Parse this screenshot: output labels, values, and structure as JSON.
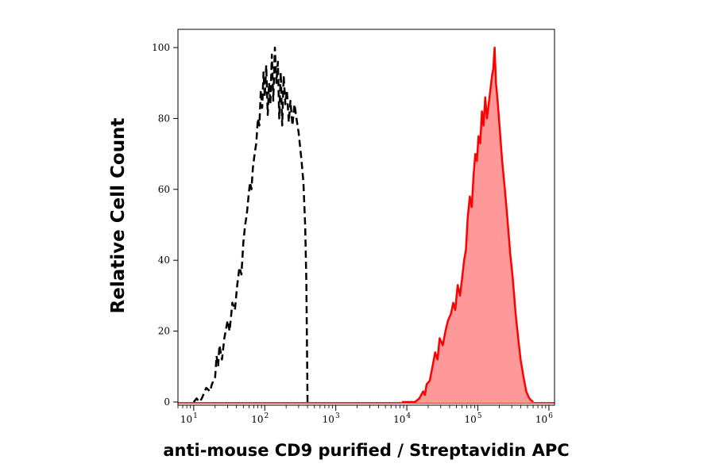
{
  "chart_data": {
    "type": "area",
    "xlabel": "anti-mouse CD9 purified / Streptavidin APC",
    "ylabel": "Relative Cell Count",
    "x_scale": "log",
    "xlim": [
      6,
      1200000
    ],
    "ylim": [
      0,
      100
    ],
    "x_ticks": [
      {
        "base": "10",
        "exp": "1",
        "value": 10
      },
      {
        "base": "10",
        "exp": "2",
        "value": 100
      },
      {
        "base": "10",
        "exp": "3",
        "value": 1000
      },
      {
        "base": "10",
        "exp": "4",
        "value": 10000
      },
      {
        "base": "10",
        "exp": "5",
        "value": 100000
      },
      {
        "base": "10",
        "exp": "6",
        "value": 1000000
      }
    ],
    "y_ticks": [
      {
        "label": "0",
        "value": 0
      },
      {
        "label": "20",
        "value": 20
      },
      {
        "label": "40",
        "value": 40
      },
      {
        "label": "60",
        "value": 60
      },
      {
        "label": "80",
        "value": 80
      },
      {
        "label": "100",
        "value": 100
      }
    ],
    "grid": false,
    "series": [
      {
        "style": "dashed",
        "color": "#000000",
        "points": [
          [
            10,
            0
          ],
          [
            11,
            1
          ],
          [
            12,
            0
          ],
          [
            13,
            1
          ],
          [
            15,
            4
          ],
          [
            17,
            3
          ],
          [
            18,
            5
          ],
          [
            20,
            7
          ],
          [
            21,
            13
          ],
          [
            22,
            10
          ],
          [
            23,
            16
          ],
          [
            25,
            12
          ],
          [
            27,
            18
          ],
          [
            30,
            23
          ],
          [
            32,
            20
          ],
          [
            35,
            28
          ],
          [
            38,
            26
          ],
          [
            41,
            33
          ],
          [
            44,
            38
          ],
          [
            47,
            36
          ],
          [
            50,
            45
          ],
          [
            53,
            50
          ],
          [
            56,
            53
          ],
          [
            59,
            58
          ],
          [
            62,
            62
          ],
          [
            65,
            60
          ],
          [
            68,
            66
          ],
          [
            72,
            70
          ],
          [
            76,
            73
          ],
          [
            80,
            80
          ],
          [
            84,
            78
          ],
          [
            88,
            88
          ],
          [
            92,
            83
          ],
          [
            96,
            93
          ],
          [
            100,
            86
          ],
          [
            105,
            95
          ],
          [
            110,
            81
          ],
          [
            115,
            90
          ],
          [
            120,
            84
          ],
          [
            126,
            98
          ],
          [
            132,
            85
          ],
          [
            139,
            100
          ],
          [
            146,
            90
          ],
          [
            153,
            96
          ],
          [
            160,
            80
          ],
          [
            168,
            93
          ],
          [
            176,
            78
          ],
          [
            185,
            92
          ],
          [
            195,
            84
          ],
          [
            205,
            88
          ],
          [
            218,
            79
          ],
          [
            230,
            85
          ],
          [
            245,
            78
          ],
          [
            262,
            84
          ],
          [
            280,
            80
          ],
          [
            300,
            76
          ],
          [
            330,
            68
          ],
          [
            350,
            62
          ],
          [
            370,
            50
          ],
          [
            385,
            34
          ],
          [
            395,
            12
          ],
          [
            400,
            0
          ]
        ]
      },
      {
        "style": "filled",
        "color": "#ff0000",
        "fill": "#ff9999",
        "points": [
          [
            8500,
            0
          ],
          [
            13000,
            0
          ],
          [
            15000,
            1
          ],
          [
            17000,
            3
          ],
          [
            18000,
            2
          ],
          [
            19000,
            5
          ],
          [
            21000,
            6
          ],
          [
            23000,
            10
          ],
          [
            25000,
            14
          ],
          [
            27000,
            12
          ],
          [
            29000,
            18
          ],
          [
            32000,
            16
          ],
          [
            35000,
            20
          ],
          [
            38000,
            23
          ],
          [
            42000,
            25
          ],
          [
            45000,
            28
          ],
          [
            48000,
            26
          ],
          [
            52000,
            33
          ],
          [
            56000,
            30
          ],
          [
            60000,
            35
          ],
          [
            64000,
            40
          ],
          [
            68000,
            43
          ],
          [
            72000,
            52
          ],
          [
            77000,
            58
          ],
          [
            82000,
            55
          ],
          [
            87000,
            64
          ],
          [
            92000,
            70
          ],
          [
            97000,
            68
          ],
          [
            102000,
            75
          ],
          [
            108000,
            73
          ],
          [
            114000,
            82
          ],
          [
            120000,
            78
          ],
          [
            127000,
            86
          ],
          [
            134000,
            80
          ],
          [
            142000,
            84
          ],
          [
            150000,
            88
          ],
          [
            158000,
            92
          ],
          [
            165000,
            94
          ],
          [
            172000,
            100
          ],
          [
            180000,
            90
          ],
          [
            190000,
            85
          ],
          [
            205000,
            76
          ],
          [
            220000,
            68
          ],
          [
            240000,
            60
          ],
          [
            260000,
            52
          ],
          [
            285000,
            42
          ],
          [
            310000,
            35
          ],
          [
            340000,
            25
          ],
          [
            370000,
            18
          ],
          [
            400000,
            12
          ],
          [
            440000,
            7
          ],
          [
            480000,
            3
          ],
          [
            530000,
            1
          ],
          [
            600000,
            0
          ]
        ]
      }
    ]
  }
}
